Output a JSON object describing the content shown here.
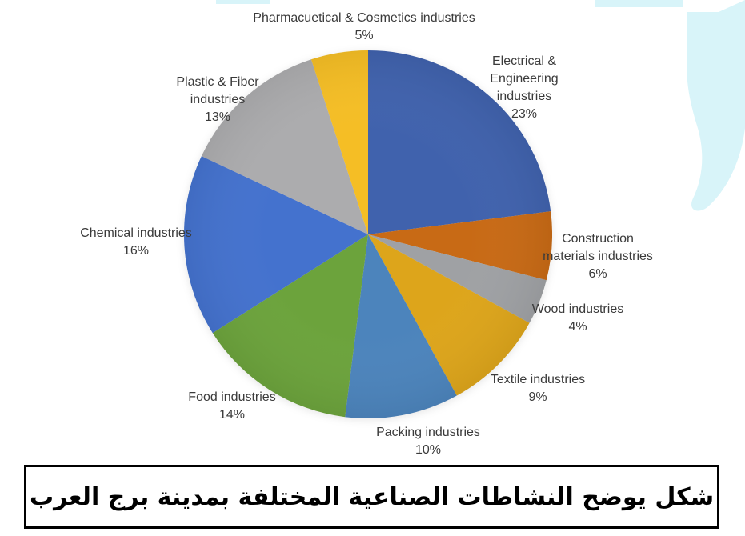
{
  "decor": {
    "accent_light": "#D8F4F9"
  },
  "chart_data": {
    "type": "pie",
    "title": "",
    "legend_position": "none",
    "data_labels": "category name and percentage, outside slices",
    "start_angle_deg": 0,
    "direction": "clockwise",
    "categories": [
      "Electrical & Engineering industries",
      "Construction materials industries",
      "Wood industries",
      "Textile industries",
      "Packing industries",
      "Food industries",
      "Chemical industries",
      "Plastic & Fiber industries",
      "Pharmacuetical & Cosmetics industries"
    ],
    "values": [
      23,
      6,
      4,
      9,
      10,
      14,
      16,
      13,
      5
    ],
    "slices": [
      {
        "label": "Electrical & Engineering industries",
        "pct_label": "23%",
        "value": 23,
        "color": "#4062AD"
      },
      {
        "label": "Construction materials industries",
        "pct_label": "6%",
        "value": 6,
        "color": "#C86A15"
      },
      {
        "label": "Wood industries",
        "pct_label": "4%",
        "value": 4,
        "color": "#9FA1A4"
      },
      {
        "label": "Textile industries",
        "pct_label": "9%",
        "value": 9,
        "color": "#DDA51B"
      },
      {
        "label": "Packing industries",
        "pct_label": "10%",
        "value": 10,
        "color": "#4C84BC"
      },
      {
        "label": "Food industries",
        "pct_label": "14%",
        "value": 14,
        "color": "#6CA33C"
      },
      {
        "label": "Chemical industries",
        "pct_label": "16%",
        "value": 16,
        "color": "#4472CE"
      },
      {
        "label": "Plastic & Fiber industries",
        "pct_label": "13%",
        "value": 13,
        "color": "#ACACAE"
      },
      {
        "label": "Pharmacuetical & Cosmetics industries",
        "pct_label": "5%",
        "value": 5,
        "color": "#F5BE25"
      }
    ]
  },
  "caption": {
    "text": "شكل يوضح النشاطات الصناعية المختلفة بمدينة برج العرب"
  }
}
